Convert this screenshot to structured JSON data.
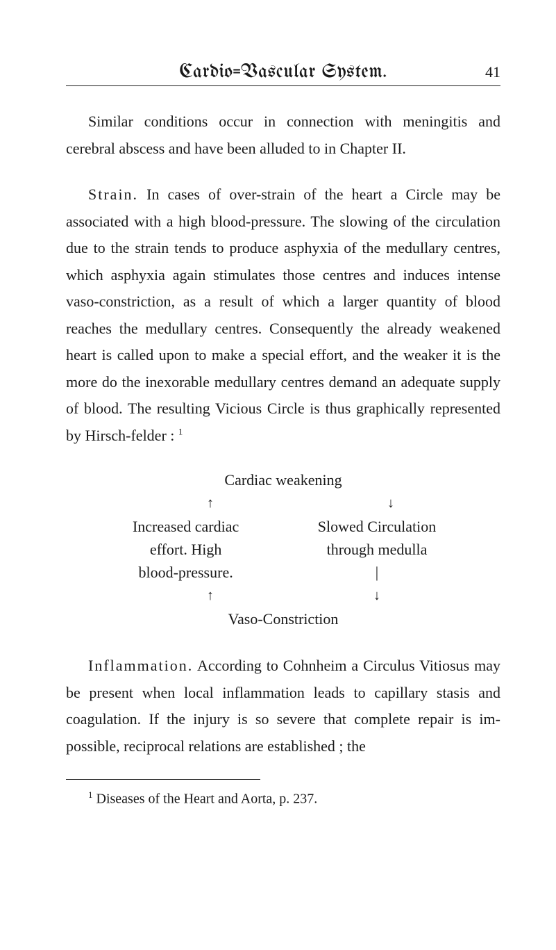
{
  "header": {
    "title": "Cardio=Vascular System.",
    "page": "41"
  },
  "paragraphs": {
    "p1": "Similar conditions occur in connection with meningitis and cerebral abscess and have been alluded to in Chapter II.",
    "p2_topic": "Strain.",
    "p2": "In cases of over-strain of the heart a Circle may be associated with a high blood-pressure. The slowing of the circulation due to the strain tends to produce asphyxia of the medullary centres, which asphyxia again stimulates those centres and induces intense vaso-constriction, as a result of which a larger quantity of blood reaches the medullary centres. Consequently the already weakened heart is called upon to make a special effort, and the weaker it is the more do the inexorable medullary centres demand an adequate supply of blood. The resulting Vicious Circle is thus graphically represented by Hirsch-felder : ",
    "p2_ref": "1",
    "p3_topic": "Inflammation.",
    "p3": "According to Cohnheim a Circulus Vitiosus may be present when local inflam­mation leads to capillary stasis and coagulation. If the injury is so severe that complete repair is im­possible, reciprocal relations are established ; the"
  },
  "diagram": {
    "title": "Cardiac weakening",
    "arrow_up_left": "↑",
    "arrow_down_right": "↓",
    "left_line1": "Increased cardiac",
    "left_line2": "effort.  High",
    "left_line3": "blood-pressure.",
    "right_line1": "Slowed Circulation",
    "right_line2": "through medulla",
    "right_line3": "|",
    "arrow_up_bot": "↑",
    "arrow_down_bot": "↓",
    "bottom": "Vaso-Constriction"
  },
  "footnote": {
    "ref": "1",
    "text": " Diseases of the Heart and Aorta, p. 237."
  },
  "colors": {
    "text": "#1a1a1a",
    "background": "#ffffff",
    "rule": "#1a1a1a"
  },
  "typography": {
    "body_fontsize": 22,
    "footnote_fontsize": 20,
    "header_fontsize": 28,
    "line_height": 1.75
  }
}
